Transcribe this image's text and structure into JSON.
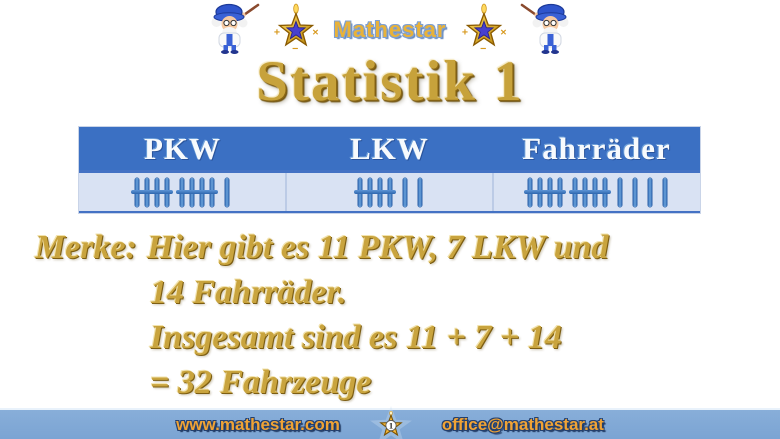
{
  "logo": {
    "brand": "Mathestar",
    "left_icon": "wizard-professor",
    "right_icon": "wizard-professor-mirrored",
    "star_symbols": [
      "+",
      "×",
      "−"
    ]
  },
  "title": "Statistik 1",
  "table": {
    "columns": [
      "PKW",
      "LKW",
      "Fahrräder"
    ]
  },
  "chart_data": {
    "type": "table",
    "representation": "tally-marks",
    "categories": [
      "PKW",
      "LKW",
      "Fahrräder"
    ],
    "values": [
      11,
      7,
      14
    ],
    "title": "Statistik 1",
    "total": 32
  },
  "note": {
    "label": "Merke:",
    "line1": "Hier gibt es 11 PKW, 7 LKW und",
    "line2": "14 Fahrräder.",
    "line3": "Insgesamt sind es 11 + 7 + 14",
    "line4": "= 32 Fahrzeuge"
  },
  "footer": {
    "website": "www.mathestar.com",
    "email": "office@mathestar.at",
    "badge_number": "1"
  },
  "colors": {
    "title_gold": "#c7a23b",
    "note_gold": "#c9a43e",
    "table_header_blue": "#3b70c3",
    "table_body_blue": "#d9e2f3",
    "tally_blue": "#3e7cc8",
    "footer_bar_blue": "#7ea7d5",
    "footer_text_gold": "#f0a335",
    "footer_outline_navy": "#24406e"
  }
}
